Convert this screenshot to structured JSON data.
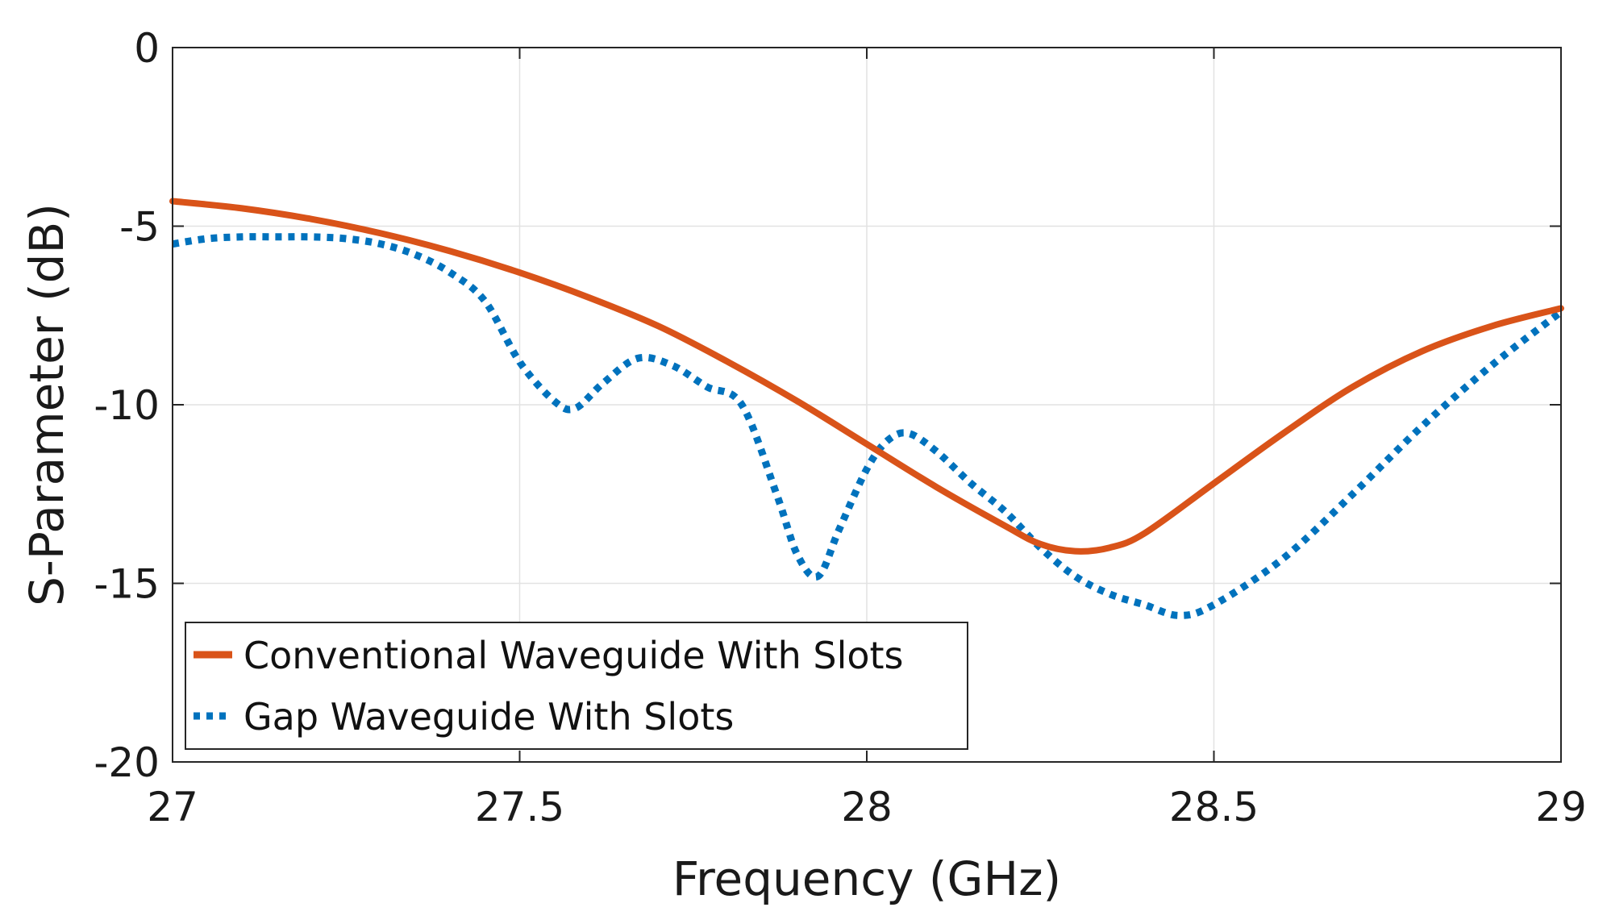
{
  "chart_data": {
    "type": "line",
    "title": "",
    "xlabel": "Frequency (GHz)",
    "ylabel": "S-Parameter (dB)",
    "xlim": [
      27,
      29
    ],
    "ylim": [
      -20,
      0
    ],
    "xticks": [
      27,
      27.5,
      28,
      28.5,
      29
    ],
    "xtick_labels": [
      "27",
      "27.5",
      "28",
      "28.5",
      "29"
    ],
    "yticks": [
      0,
      -5,
      -10,
      -15,
      -20
    ],
    "ytick_labels": [
      "0",
      "-5",
      "-10",
      "-15",
      "-20"
    ],
    "grid": true,
    "legend_position": "bottom-left",
    "series": [
      {
        "name": "Conventional Waveguide With Slots",
        "color": "#D95319",
        "style": "solid",
        "x": [
          27.0,
          27.1,
          27.2,
          27.3,
          27.4,
          27.5,
          27.6,
          27.7,
          27.8,
          27.9,
          28.0,
          28.1,
          28.2,
          28.25,
          28.3,
          28.35,
          28.4,
          28.5,
          28.6,
          28.7,
          28.8,
          28.9,
          29.0
        ],
        "y": [
          -4.3,
          -4.5,
          -4.8,
          -5.2,
          -5.7,
          -6.3,
          -7.0,
          -7.8,
          -8.8,
          -9.9,
          -11.1,
          -12.3,
          -13.4,
          -13.9,
          -14.1,
          -14.0,
          -13.6,
          -12.2,
          -10.8,
          -9.5,
          -8.5,
          -7.8,
          -7.3
        ]
      },
      {
        "name": "Gap Waveguide With Slots",
        "color": "#0072BD",
        "style": "dotted",
        "x": [
          27.0,
          27.05,
          27.1,
          27.15,
          27.2,
          27.25,
          27.3,
          27.35,
          27.4,
          27.45,
          27.5,
          27.55,
          27.58,
          27.62,
          27.67,
          27.72,
          27.77,
          27.82,
          27.87,
          27.9,
          27.93,
          27.96,
          28.0,
          28.03,
          28.06,
          28.1,
          28.15,
          28.2,
          28.25,
          28.3,
          28.35,
          28.4,
          28.45,
          28.5,
          28.6,
          28.7,
          28.8,
          28.9,
          29.0
        ],
        "y": [
          -5.5,
          -5.35,
          -5.3,
          -5.3,
          -5.3,
          -5.35,
          -5.5,
          -5.8,
          -6.3,
          -7.1,
          -8.8,
          -9.9,
          -10.1,
          -9.4,
          -8.7,
          -8.9,
          -9.5,
          -10.0,
          -12.5,
          -14.2,
          -14.8,
          -13.5,
          -11.8,
          -11.0,
          -10.8,
          -11.3,
          -12.2,
          -13.0,
          -14.0,
          -14.8,
          -15.3,
          -15.6,
          -15.9,
          -15.6,
          -14.3,
          -12.5,
          -10.6,
          -8.9,
          -7.4
        ]
      }
    ]
  }
}
